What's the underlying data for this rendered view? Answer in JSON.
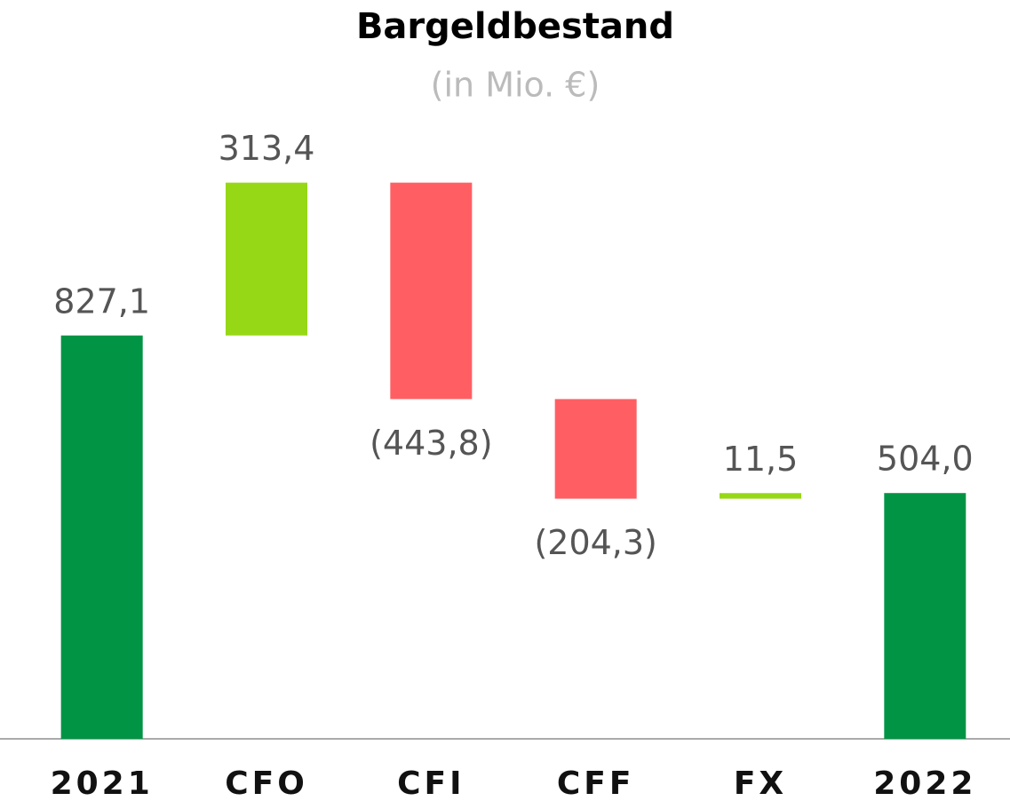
{
  "chart_data": {
    "type": "waterfall",
    "title": "Bargeldbestand",
    "subtitle": "(in Mio. €)",
    "categories": [
      "2021",
      "CFO",
      "CFI",
      "CFF",
      "FX",
      "2022"
    ],
    "values": [
      827.1,
      313.4,
      -443.8,
      -204.3,
      11.5,
      504.0
    ],
    "value_labels": [
      "827,1",
      "313,4",
      "(443,8)",
      "(204,3)",
      "11,5",
      "504,0"
    ],
    "measure": [
      "absolute",
      "relative",
      "relative",
      "relative",
      "relative",
      "absolute"
    ],
    "colors": [
      "#009444",
      "#97d816",
      "#ff5f63",
      "#ff5f63",
      "#97d816",
      "#009444"
    ],
    "ylim": [
      0,
      1515
    ]
  }
}
